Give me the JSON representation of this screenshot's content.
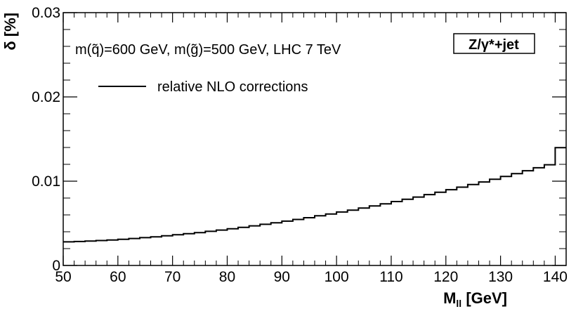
{
  "chart_data": {
    "type": "line",
    "style": "step",
    "xlabel": "M",
    "xlabel_sub": "ll",
    "xlabel_unit": " [GeV]",
    "ylabel": "δ [%]",
    "xlim": [
      50,
      142
    ],
    "ylim": [
      0,
      0.03
    ],
    "x_ticks": [
      50,
      60,
      70,
      80,
      90,
      100,
      110,
      120,
      130,
      140
    ],
    "x_tick_labels": [
      "50",
      "60",
      "70",
      "80",
      "90",
      "100",
      "110",
      "120",
      "130",
      "140"
    ],
    "y_ticks": [
      0,
      0.01,
      0.02,
      0.03
    ],
    "y_tick_labels": [
      "0",
      "0.01",
      "0.02",
      "0.03"
    ],
    "annotation": "m(q̃)=600 GeV, m(g̃)=500 GeV, LHC 7 TeV",
    "badge": "Z/γ*+jet",
    "legend": [
      {
        "label": "relative NLO corrections",
        "style": "solid-black"
      }
    ],
    "series": [
      {
        "name": "relative NLO corrections",
        "bin_width": 2,
        "x_start": 50,
        "values": [
          0.0028,
          0.00284,
          0.00289,
          0.00296,
          0.00302,
          0.00311,
          0.0032,
          0.0033,
          0.0034,
          0.00352,
          0.00364,
          0.00377,
          0.0039,
          0.00405,
          0.0042,
          0.00436,
          0.00452,
          0.0047,
          0.00488,
          0.00507,
          0.00526,
          0.00546,
          0.00567,
          0.00589,
          0.00611,
          0.00634,
          0.00657,
          0.00682,
          0.00706,
          0.00732,
          0.00758,
          0.00785,
          0.00812,
          0.00841,
          0.00869,
          0.00899,
          0.00929,
          0.0096,
          0.00991,
          0.01023,
          0.01056,
          0.0109,
          0.01124,
          0.01159,
          0.01195,
          0.01398
        ]
      }
    ]
  }
}
